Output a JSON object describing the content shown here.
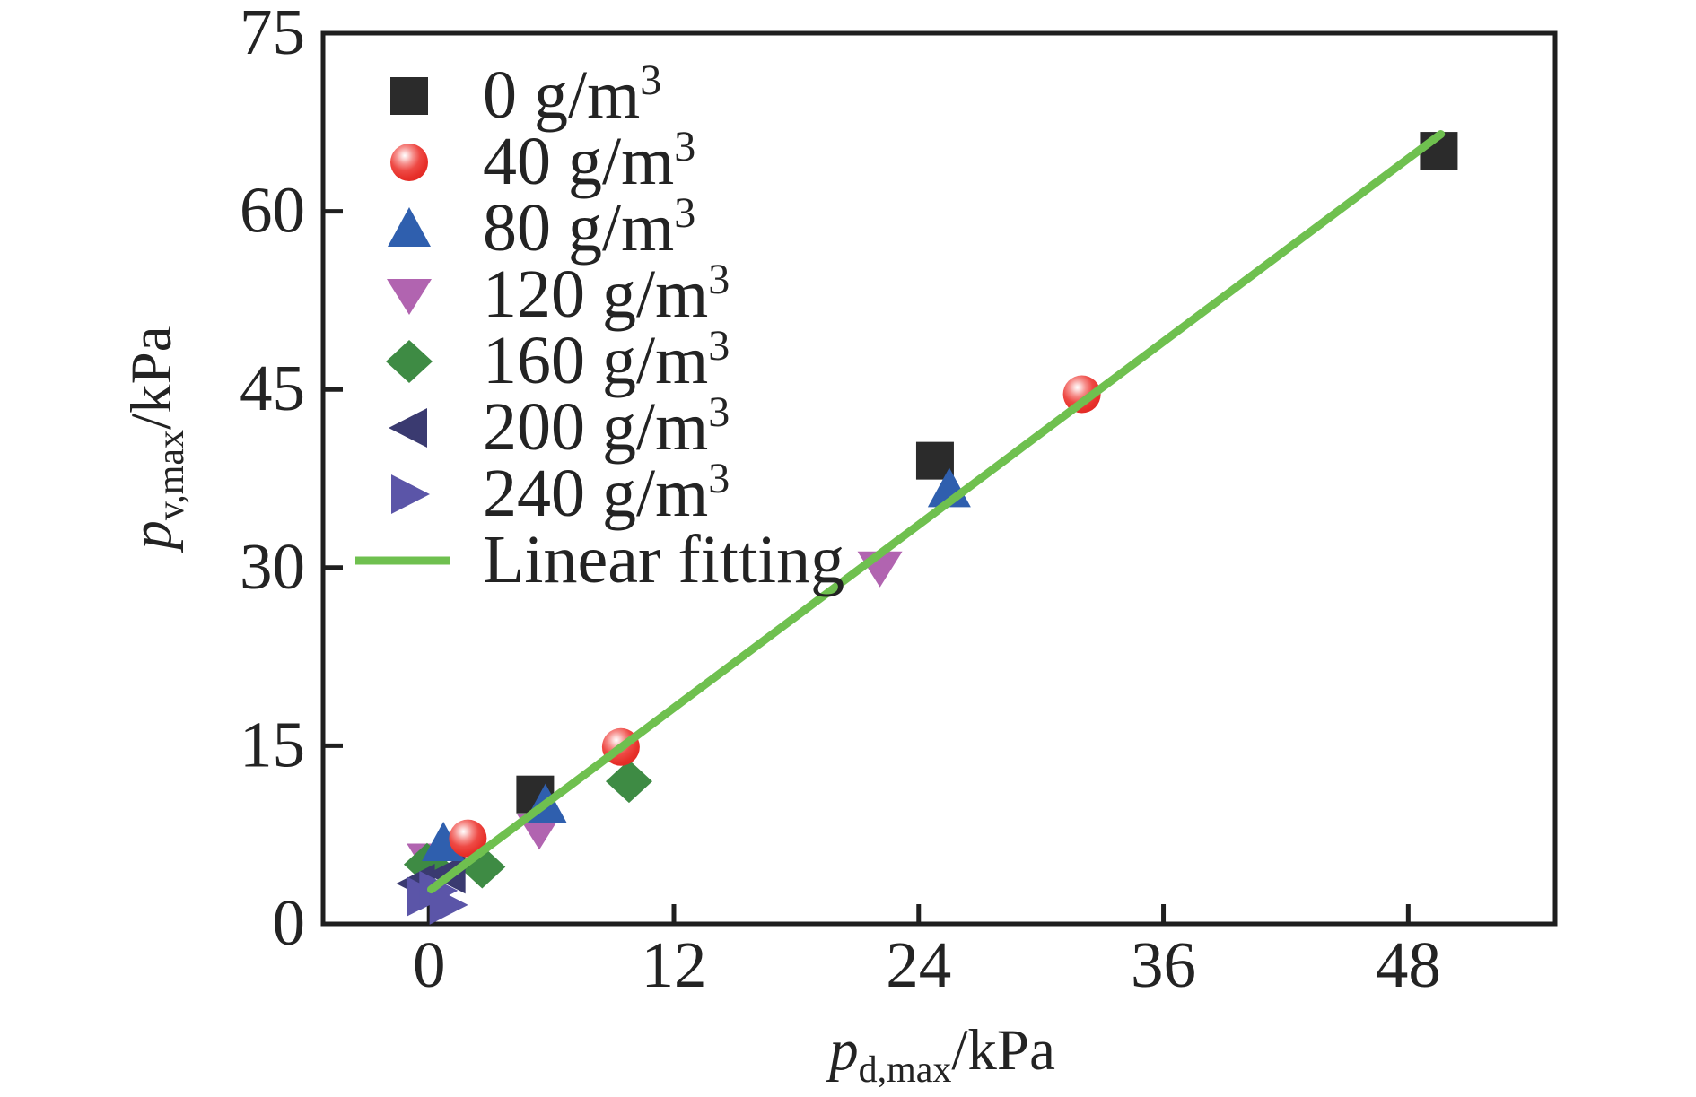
{
  "figure": {
    "background": "#ffffff",
    "axis_color": "#1f1f1f",
    "text_color": "#232323"
  },
  "chart_data": {
    "type": "scatter",
    "title": "",
    "xlabel": {
      "symbol": "p",
      "subscript": "d,max",
      "unit": "/kPa"
    },
    "ylabel": {
      "symbol": "p",
      "subscript": "v,max",
      "unit": "/kPa"
    },
    "xlim": [
      -5.2,
      55.2
    ],
    "ylim": [
      0,
      75
    ],
    "x_ticks": [
      0,
      12,
      24,
      36,
      48
    ],
    "y_ticks": [
      0,
      15,
      30,
      45,
      60,
      75
    ],
    "grid": false,
    "legend_position": "upper-left-inside",
    "series": [
      {
        "label": "0 g/m³",
        "marker": "square",
        "color": "#2b2b2b",
        "points": [
          [
            5.2,
            10.9
          ],
          [
            24.8,
            39.0
          ],
          [
            49.5,
            65.1
          ]
        ]
      },
      {
        "label": "40 g/m³",
        "marker": "sphere",
        "color": "#e6312b",
        "points": [
          [
            1.9,
            7.2
          ],
          [
            9.4,
            14.9
          ],
          [
            32.0,
            44.6
          ]
        ]
      },
      {
        "label": "80 g/m³",
        "marker": "triangle-up",
        "color": "#2f5fae",
        "points": [
          [
            0.7,
            6.8
          ],
          [
            5.7,
            10.0
          ],
          [
            25.5,
            36.6
          ]
        ]
      },
      {
        "label": "120 g/m³",
        "marker": "triangle-down",
        "color": "#b164b0",
        "points": [
          [
            0.0,
            5.4
          ],
          [
            5.4,
            7.9
          ],
          [
            22.1,
            30.0
          ]
        ]
      },
      {
        "label": "160 g/m³",
        "marker": "diamond",
        "color": "#3e8b44",
        "points": [
          [
            -0.1,
            5.0
          ],
          [
            2.6,
            4.8
          ],
          [
            9.8,
            12.0
          ]
        ]
      },
      {
        "label": "200 g/m³",
        "marker": "triangle-left",
        "color": "#3a3a70",
        "points": [
          [
            -0.6,
            3.4
          ],
          [
            0.9,
            4.2
          ]
        ]
      },
      {
        "label": "240 g/m³",
        "marker": "triangle-right",
        "color": "#5b55a8",
        "points": [
          [
            -0.2,
            2.3
          ],
          [
            0.4,
            2.8
          ],
          [
            0.9,
            1.6
          ]
        ]
      }
    ],
    "fit_line": {
      "label": "Linear fitting",
      "color": "#6fc04f",
      "points": [
        [
          0.1,
          2.9
        ],
        [
          49.6,
          66.5
        ]
      ]
    }
  }
}
